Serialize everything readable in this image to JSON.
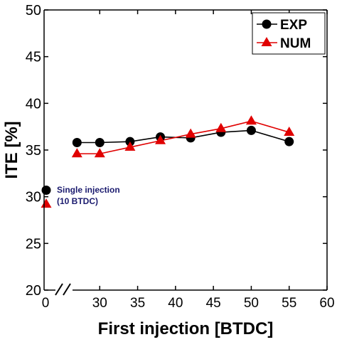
{
  "chart_data": {
    "type": "line",
    "xlabel": "First injection [BTDC]",
    "ylabel": "ITE [%]",
    "xlim": [
      25,
      60
    ],
    "ylim": [
      20,
      50
    ],
    "x_ticks": [
      "30",
      "35",
      "40",
      "45",
      "50",
      "55",
      "60"
    ],
    "x_tick_values": [
      30,
      35,
      40,
      45,
      50,
      55,
      60
    ],
    "x_origin_label": "0",
    "y_ticks": [
      "20",
      "25",
      "30",
      "35",
      "40",
      "45",
      "50"
    ],
    "y_tick_values": [
      20,
      25,
      30,
      35,
      40,
      45,
      50
    ],
    "axis_break": true,
    "grid": false,
    "legend_position": "top-right",
    "series": [
      {
        "name": "EXP",
        "marker": "circle",
        "color": "#000000",
        "x": [
          27,
          30,
          34,
          38,
          42,
          46,
          50,
          55
        ],
        "y": [
          35.8,
          35.8,
          35.9,
          36.4,
          36.3,
          36.9,
          37.1,
          35.9
        ]
      },
      {
        "name": "NUM",
        "marker": "triangle",
        "color": "#e00000",
        "x": [
          27,
          30,
          34,
          38,
          42,
          46,
          50,
          55
        ],
        "y": [
          34.6,
          34.6,
          35.3,
          36.0,
          36.7,
          37.3,
          38.1,
          36.9
        ]
      }
    ],
    "single_injection": {
      "label_line1": "Single injection",
      "label_line2": "(10 BTDC)",
      "label_color": "#1a1a6e",
      "exp_y": 30.7,
      "num_y": 29.2
    }
  }
}
